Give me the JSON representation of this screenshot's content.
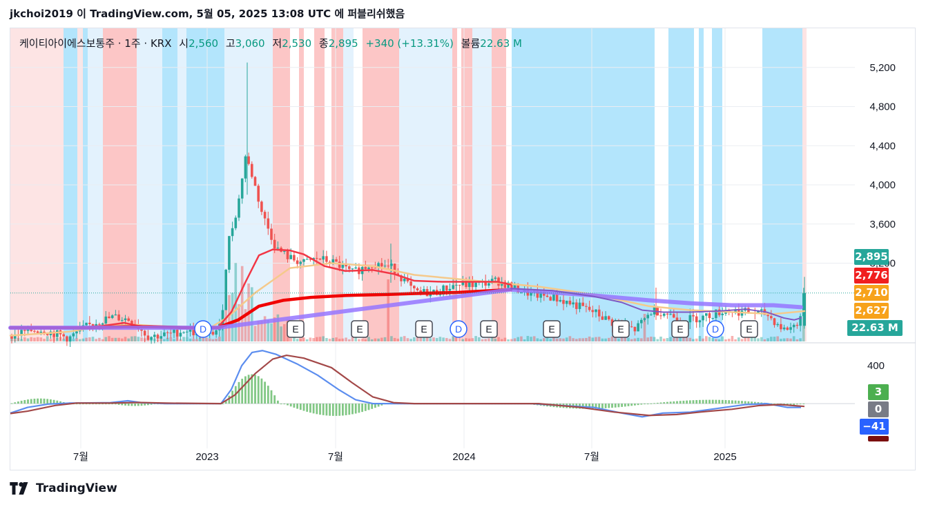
{
  "caption": "jkchoi2019 이 TradingView.com, 5월 05, 2025 13:08 UTC 에 퍼블리쉬했음",
  "legend": {
    "symbol": "케이티아이에스보통주 · 1주 · KRX",
    "open_label": "시",
    "open": "2,560",
    "high_label": "고",
    "high": "3,060",
    "low_label": "저",
    "low": "2,530",
    "close_label": "종",
    "close": "2,895",
    "change": "+340 (+13.31%)",
    "volume_label": "볼륨",
    "volume": "22.63 M"
  },
  "brand": "TradingView",
  "price_tags": [
    {
      "value": "2,895",
      "color": "#26a69a"
    },
    {
      "value": "2,776",
      "color": "#f01f1f"
    },
    {
      "value": "2,710",
      "color": "#f7a21b"
    },
    {
      "value": "2,627",
      "color": "#f7a21b"
    },
    {
      "value": "22.63 M",
      "color": "#26a69a"
    }
  ],
  "macd_tags": [
    {
      "value": "3",
      "color": "#4caf50"
    },
    {
      "value": "0",
      "color": "#787b86"
    },
    {
      "value": "−41",
      "color": "#2962ff"
    }
  ],
  "chart_data": {
    "type": "candlestick",
    "price_axis_ticks": [
      5200,
      4800,
      4400,
      4000,
      3600,
      3200
    ],
    "price_axis_labels": [
      "5,200",
      "4,800",
      "4,400",
      "4,000",
      "3,600",
      "3,200"
    ],
    "ylim": [
      2400,
      5600
    ],
    "macd_axis_ticks": [
      400
    ],
    "macd_axis_labels": [
      "400"
    ],
    "macd_ylim": [
      -400,
      620
    ],
    "x_labels": [
      "7월",
      "2023",
      "7월",
      "2024",
      "7월",
      "2025"
    ],
    "event_markers": [
      "D",
      "E",
      "E",
      "E",
      "D",
      "E",
      "E",
      "E",
      "E",
      "D",
      "E"
    ],
    "colors": {
      "up": "#26a69a",
      "down": "#ef5350",
      "ma_fast": "#f23645",
      "ma_slow": "#ff0000",
      "ma_long": "#9575ff",
      "ma_tan": "#f5c98b",
      "macd": "#5b8def",
      "signal": "#a34848",
      "hist": "#81c784"
    }
  }
}
